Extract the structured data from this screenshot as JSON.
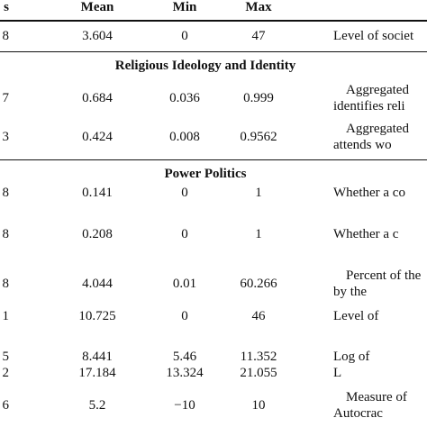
{
  "table": {
    "header": [
      "s",
      "Mean",
      "Min",
      "Max"
    ],
    "rows": [
      {
        "cells": [
          "8",
          "3.604",
          "0",
          "47"
        ],
        "description": [
          "Level of societ"
        ]
      }
    ],
    "sections": [
      {
        "title": "Religious Ideology and Identity",
        "rows": [
          {
            "cells": [
              "7",
              "0.684",
              "0.036",
              "0.999"
            ],
            "description": [
              "Aggregated",
              "identifies reli"
            ]
          },
          {
            "cells": [
              "3",
              "0.424",
              "0.008",
              "0.9562"
            ],
            "description": [
              "Aggregated",
              "attends wo"
            ]
          }
        ]
      },
      {
        "title": "Power Politics",
        "rows": [
          {
            "cells": [
              "8",
              "0.141",
              "0",
              "1"
            ],
            "description": [
              "Whether a co"
            ]
          },
          {
            "cells": [
              "8",
              "0.208",
              "0",
              "1"
            ],
            "description": [
              "Whether a c"
            ]
          },
          {
            "cells": [
              "8",
              "4.044",
              "0.01",
              "60.266"
            ],
            "description": [
              "Percent of the",
              "by the"
            ]
          },
          {
            "cells": [
              "1",
              "10.725",
              "0",
              "46"
            ],
            "description": [
              "Level of"
            ]
          },
          {
            "cells": [
              "5",
              "8.441",
              "5.46",
              "11.352"
            ],
            "description": [
              "Log of"
            ]
          },
          {
            "cells": [
              "2",
              "17.184",
              "13.324",
              "21.055"
            ],
            "description": [
              "L"
            ]
          },
          {
            "cells": [
              "6",
              "5.2",
              "−10",
              "10"
            ],
            "description": [
              "Measure of",
              "Autocrac"
            ]
          }
        ]
      }
    ]
  }
}
